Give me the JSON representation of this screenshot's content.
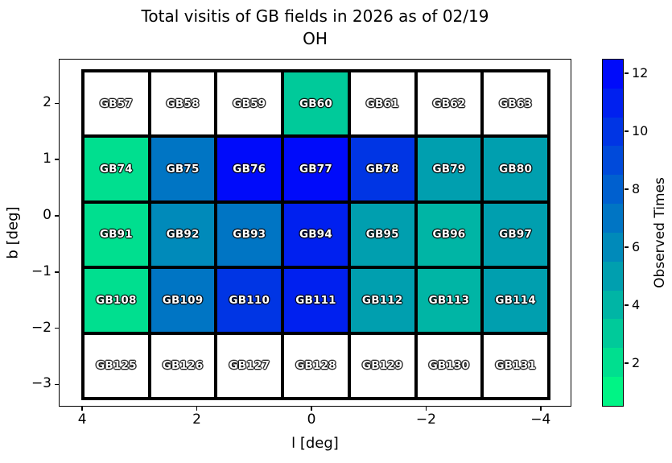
{
  "title": {
    "line1": "Total visitis of GB fields in 2026 as of 02/19",
    "line2": "OH"
  },
  "axes": {
    "xlabel": "l [deg]",
    "ylabel": "b [deg]",
    "x_tick_values": [
      4,
      2,
      0,
      -2,
      -4
    ],
    "x_tick_labels": [
      "4",
      "2",
      "0",
      "−2",
      "−4"
    ],
    "y_tick_values": [
      2,
      1,
      0,
      -1,
      -2,
      -3
    ],
    "y_tick_labels": [
      "2",
      "1",
      "0",
      "−1",
      "−2",
      "−3"
    ]
  },
  "colorbar": {
    "label": "Observed Times",
    "tick_values": [
      2,
      4,
      6,
      8,
      10,
      12
    ],
    "tick_labels": [
      "2",
      "4",
      "6",
      "8",
      "10",
      "12"
    ],
    "range": [
      0.5,
      12.5
    ],
    "n_levels": 12,
    "level_colors": {
      "1": "#00F485",
      "2": "#00DF8F",
      "3": "#00CA9A",
      "4": "#00B5A5",
      "5": "#009FAF",
      "6": "#008ABA",
      "7": "#0075C4",
      "8": "#0060CF",
      "9": "#004ADA",
      "10": "#0035E4",
      "11": "#0020EF",
      "12": "#000BFA"
    }
  },
  "chart_data": {
    "type": "heatmap",
    "title": "Total visitis of GB fields in 2026 as of 02/19 OH",
    "xlabel": "l [deg]",
    "ylabel": "b [deg]",
    "value_label": "Observed Times",
    "colormap": "winter_r, 12 discrete levels, range 0.5-12.5",
    "unobserved_color": "#FFFFFF",
    "x_centers_deg": [
      3.6,
      2.4,
      1.2,
      0.0,
      -1.2,
      -2.4,
      -3.6
    ],
    "y_centers_deg": [
      2.1,
      0.9,
      -0.3,
      -1.5,
      -2.7
    ],
    "xlim": [
      4.5,
      -4.5
    ],
    "ylim": [
      -3.4,
      2.7
    ],
    "rows": [
      {
        "fields": [
          "GB57",
          "GB58",
          "GB59",
          "GB60",
          "GB61",
          "GB62",
          "GB63"
        ],
        "values": [
          0,
          0,
          0,
          3,
          0,
          0,
          0
        ]
      },
      {
        "fields": [
          "GB74",
          "GB75",
          "GB76",
          "GB77",
          "GB78",
          "GB79",
          "GB80"
        ],
        "values": [
          2,
          7,
          12,
          12,
          10,
          5,
          5
        ]
      },
      {
        "fields": [
          "GB91",
          "GB92",
          "GB93",
          "GB94",
          "GB95",
          "GB96",
          "GB97"
        ],
        "values": [
          2,
          6,
          7,
          11,
          5,
          4,
          5
        ]
      },
      {
        "fields": [
          "GB108",
          "GB109",
          "GB110",
          "GB111",
          "GB112",
          "GB113",
          "GB114"
        ],
        "values": [
          2,
          7,
          10,
          11,
          5,
          4,
          5
        ]
      },
      {
        "fields": [
          "GB125",
          "GB126",
          "GB127",
          "GB128",
          "GB129",
          "GB130",
          "GB131"
        ],
        "values": [
          0,
          0,
          0,
          0,
          0,
          0,
          0
        ]
      }
    ],
    "cell_text_color": "#FFFFFF",
    "cell_outline_color": "#595959"
  }
}
